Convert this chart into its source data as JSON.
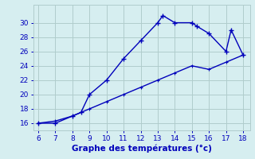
{
  "line1_x": [
    6,
    7,
    8,
    8.5,
    9,
    10,
    11,
    12,
    13,
    13.3,
    14,
    15,
    15.3,
    16,
    17,
    17.3,
    18
  ],
  "line1_y": [
    16,
    16,
    17,
    17.5,
    20,
    22,
    25,
    27.5,
    30,
    31,
    30,
    30,
    29.5,
    28.5,
    26,
    29,
    25.5
  ],
  "line2_x": [
    6,
    7,
    8,
    9,
    10,
    11,
    12,
    13,
    14,
    15,
    16,
    17,
    18
  ],
  "line2_y": [
    16,
    16.3,
    17,
    18,
    19,
    20,
    21,
    22,
    23,
    24,
    23.5,
    24.5,
    25.5
  ],
  "line_color": "#0000bb",
  "bg_color": "#d6eef0",
  "grid_color": "#b0cccc",
  "xlabel": "Graphe des températures (°c)",
  "xlabel_color": "#0000bb",
  "tick_color": "#0000bb",
  "xlim": [
    5.7,
    18.4
  ],
  "ylim": [
    15.0,
    32.5
  ],
  "xticks": [
    6,
    7,
    8,
    9,
    10,
    11,
    12,
    13,
    14,
    15,
    16,
    17,
    18
  ],
  "yticks": [
    16,
    18,
    20,
    22,
    24,
    26,
    28,
    30
  ],
  "tick_fontsize": 6.5,
  "xlabel_fontsize": 7.5
}
